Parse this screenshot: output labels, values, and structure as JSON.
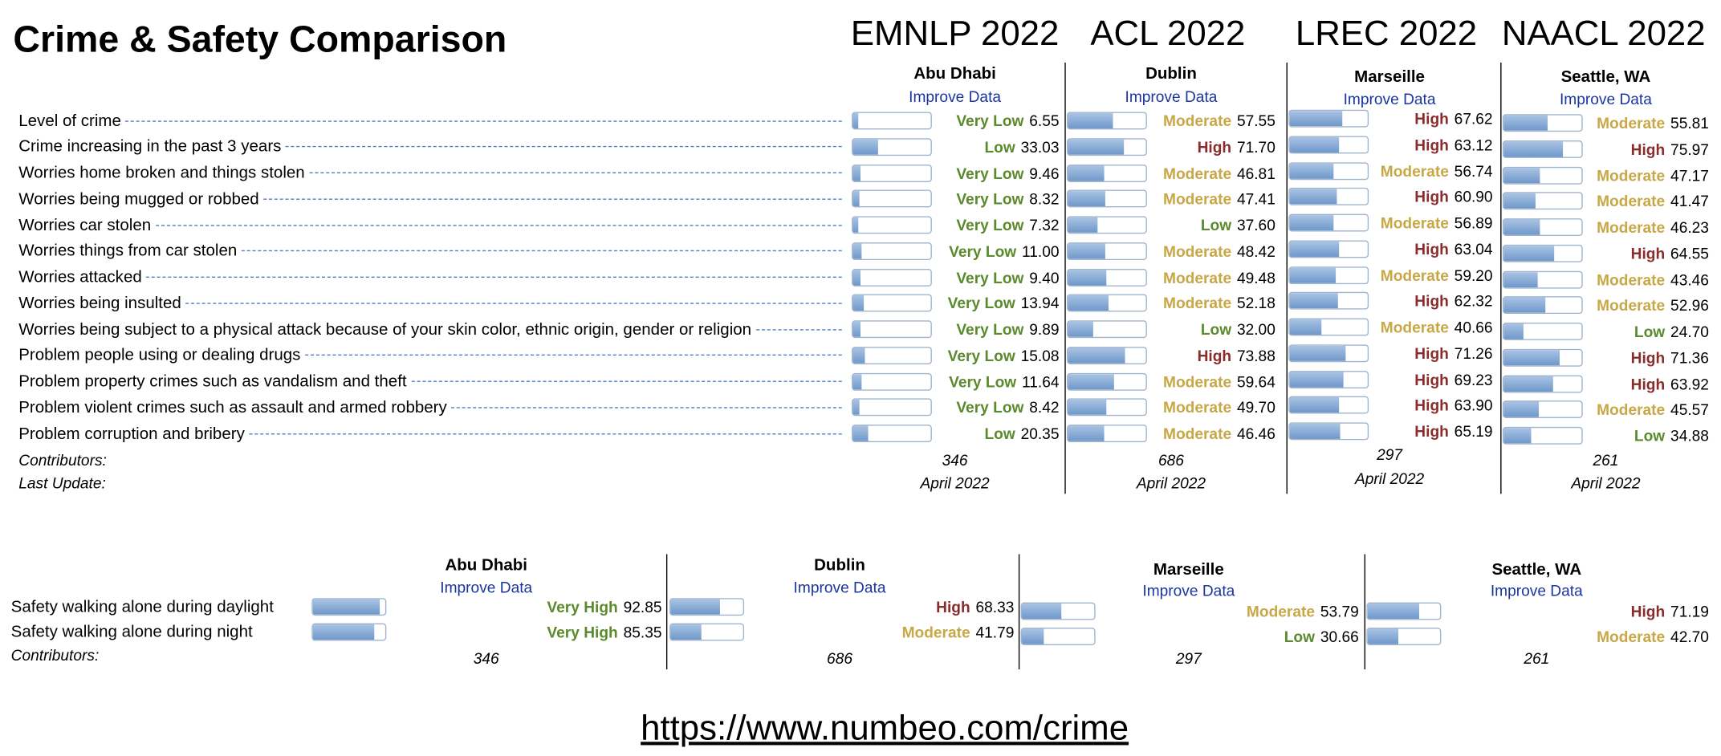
{
  "title": "Crime & Safety Comparison",
  "conferences": [
    "EMNLP 2022",
    "ACL 2022",
    "LREC 2022",
    "NAACL 2022"
  ],
  "level_colors": {
    "Very Low": "#5b8a2d",
    "Low": "#5b8a2d",
    "Moderate": "#c8a846",
    "High": "#8a2c2c",
    "Very High": "#5b8a2d"
  },
  "bar_range": [
    0,
    100
  ],
  "crime": {
    "cities": [
      {
        "name": "Abu Dhabi",
        "improve": "Improve Data",
        "contributors": 346,
        "last_update": "April 2022"
      },
      {
        "name": "Dublin",
        "improve": "Improve Data",
        "contributors": 686,
        "last_update": "April 2022"
      },
      {
        "name": "Marseille",
        "improve": "Improve Data",
        "contributors": 297,
        "last_update": "April 2022"
      },
      {
        "name": "Seattle, WA",
        "improve": "Improve Data",
        "contributors": 261,
        "last_update": "April 2022"
      }
    ],
    "contributors_label": "Contributors:",
    "last_update_label": "Last Update:",
    "rows": [
      {
        "label": "Level of crime",
        "cells": [
          {
            "level": "Very Low",
            "value": 6.55
          },
          {
            "level": "Moderate",
            "value": 57.55
          },
          {
            "level": "High",
            "value": 67.62
          },
          {
            "level": "Moderate",
            "value": 55.81
          }
        ]
      },
      {
        "label": "Crime increasing in the past 3 years",
        "cells": [
          {
            "level": "Low",
            "value": 33.03
          },
          {
            "level": "High",
            "value": 71.7,
            "label": "71.70"
          },
          {
            "level": "High",
            "value": 63.12
          },
          {
            "level": "High",
            "value": 75.97
          }
        ]
      },
      {
        "label": "Worries home broken and things stolen",
        "cells": [
          {
            "level": "Very Low",
            "value": 9.46
          },
          {
            "level": "Moderate",
            "value": 46.81
          },
          {
            "level": "Moderate",
            "value": 56.74
          },
          {
            "level": "Moderate",
            "value": 47.17
          }
        ]
      },
      {
        "label": "Worries being mugged or robbed",
        "cells": [
          {
            "level": "Very Low",
            "value": 8.32
          },
          {
            "level": "Moderate",
            "value": 47.41
          },
          {
            "level": "High",
            "value": 60.9,
            "label": "60.90"
          },
          {
            "level": "Moderate",
            "value": 41.47
          }
        ]
      },
      {
        "label": "Worries car stolen",
        "cells": [
          {
            "level": "Very Low",
            "value": 7.32
          },
          {
            "level": "Low",
            "value": 37.6,
            "label": "37.60"
          },
          {
            "level": "Moderate",
            "value": 56.89
          },
          {
            "level": "Moderate",
            "value": 46.23
          }
        ]
      },
      {
        "label": "Worries things from car stolen",
        "cells": [
          {
            "level": "Very Low",
            "value": 11,
            "label": "11.00"
          },
          {
            "level": "Moderate",
            "value": 48.42
          },
          {
            "level": "High",
            "value": 63.04
          },
          {
            "level": "High",
            "value": 64.55
          }
        ]
      },
      {
        "label": "Worries attacked",
        "cells": [
          {
            "level": "Very Low",
            "value": 9.4,
            "label": "9.40"
          },
          {
            "level": "Moderate",
            "value": 49.48
          },
          {
            "level": "Moderate",
            "value": 59.2,
            "label": "59.20"
          },
          {
            "level": "Moderate",
            "value": 43.46
          }
        ]
      },
      {
        "label": "Worries being insulted",
        "cells": [
          {
            "level": "Very Low",
            "value": 13.94
          },
          {
            "level": "Moderate",
            "value": 52.18
          },
          {
            "level": "High",
            "value": 62.32
          },
          {
            "level": "Moderate",
            "value": 52.96
          }
        ]
      },
      {
        "label": "Worries being subject to a physical attack because of your skin color, ethnic origin, gender or religion",
        "cells": [
          {
            "level": "Very Low",
            "value": 9.89
          },
          {
            "level": "Low",
            "value": 32,
            "label": "32.00"
          },
          {
            "level": "Moderate",
            "value": 40.66
          },
          {
            "level": "Low",
            "value": 24.7,
            "label": "24.70"
          }
        ]
      },
      {
        "label": "Problem people using or dealing drugs",
        "cells": [
          {
            "level": "Very Low",
            "value": 15.08
          },
          {
            "level": "High",
            "value": 73.88
          },
          {
            "level": "High",
            "value": 71.26
          },
          {
            "level": "High",
            "value": 71.36
          }
        ]
      },
      {
        "label": "Problem property crimes such as vandalism and theft",
        "cells": [
          {
            "level": "Very Low",
            "value": 11.64
          },
          {
            "level": "Moderate",
            "value": 59.64
          },
          {
            "level": "High",
            "value": 69.23
          },
          {
            "level": "High",
            "value": 63.92
          }
        ]
      },
      {
        "label": "Problem violent crimes such as assault and armed robbery",
        "cells": [
          {
            "level": "Very Low",
            "value": 8.42
          },
          {
            "level": "Moderate",
            "value": 49.7,
            "label": "49.70"
          },
          {
            "level": "High",
            "value": 63.9,
            "label": "63.90"
          },
          {
            "level": "Moderate",
            "value": 45.57
          }
        ]
      },
      {
        "label": "Problem corruption and bribery",
        "cells": [
          {
            "level": "Low",
            "value": 20.35
          },
          {
            "level": "Moderate",
            "value": 46.46
          },
          {
            "level": "High",
            "value": 65.19
          },
          {
            "level": "Low",
            "value": 34.88
          }
        ]
      }
    ]
  },
  "safety": {
    "cities": [
      {
        "name": "Abu Dhabi",
        "improve": "Improve Data",
        "contributors": 346
      },
      {
        "name": "Dublin",
        "improve": "Improve Data",
        "contributors": 686
      },
      {
        "name": "Marseille",
        "improve": "Improve Data",
        "contributors": 297
      },
      {
        "name": "Seattle, WA",
        "improve": "Improve Data",
        "contributors": 261
      }
    ],
    "contributors_label": "Contributors:",
    "rows": [
      {
        "label": "Safety walking alone during daylight",
        "cells": [
          {
            "level": "Very High",
            "value": 92.85
          },
          {
            "level": "High",
            "value": 68.33
          },
          {
            "level": "Moderate",
            "value": 53.79
          },
          {
            "level": "High",
            "value": 71.19
          }
        ]
      },
      {
        "label": "Safety walking alone during night",
        "cells": [
          {
            "level": "Very High",
            "value": 85.35
          },
          {
            "level": "Moderate",
            "value": 41.79
          },
          {
            "level": "Low",
            "value": 30.66
          },
          {
            "level": "Moderate",
            "value": 42.7,
            "label": "42.70"
          }
        ]
      }
    ]
  },
  "url": "https://www.numbeo.com/crime"
}
